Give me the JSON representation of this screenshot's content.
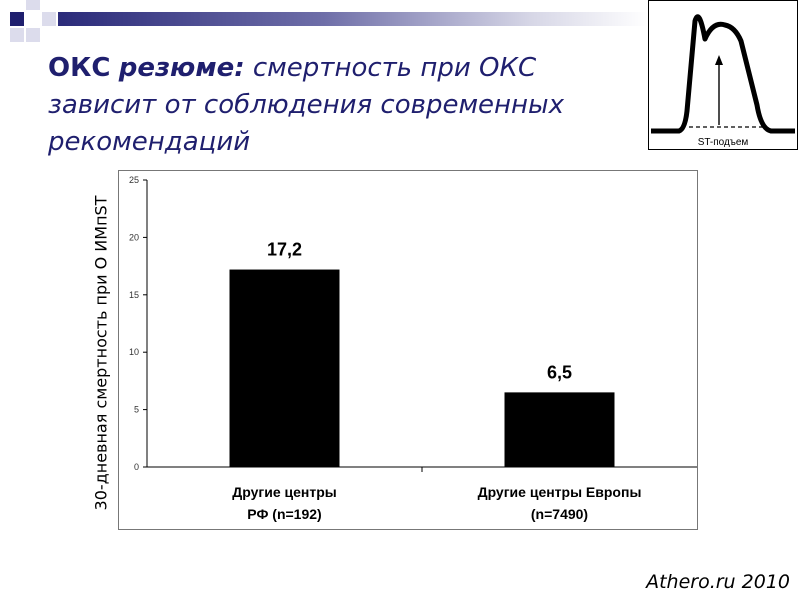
{
  "slide": {
    "title_lead": "ОКС",
    "title_emph": "резюме:",
    "title_rest": "смертность при ОКС зависит от соблюдения современных рекомендаций",
    "source": "Athero.ru 2010"
  },
  "ecg_inset": {
    "label": "ST-подъем"
  },
  "chart_data": {
    "type": "bar",
    "categories": [
      [
        "Другие  центры",
        "РФ (n=192)"
      ],
      [
        "Другие центры Европы",
        "(n=7490)"
      ]
    ],
    "values": [
      17.2,
      6.5
    ],
    "data_labels": [
      "17,2",
      "6,5"
    ],
    "ylabel": "30-дневная смертность при О ИМпST",
    "ylim": [
      0,
      25
    ],
    "yticks": [
      0,
      5,
      10,
      15,
      20,
      25
    ],
    "bar_color": "#000000",
    "grid": false,
    "legend": "none"
  },
  "colors": {
    "title": "#1f1f6e",
    "header_squares": "#1f1f6e"
  }
}
